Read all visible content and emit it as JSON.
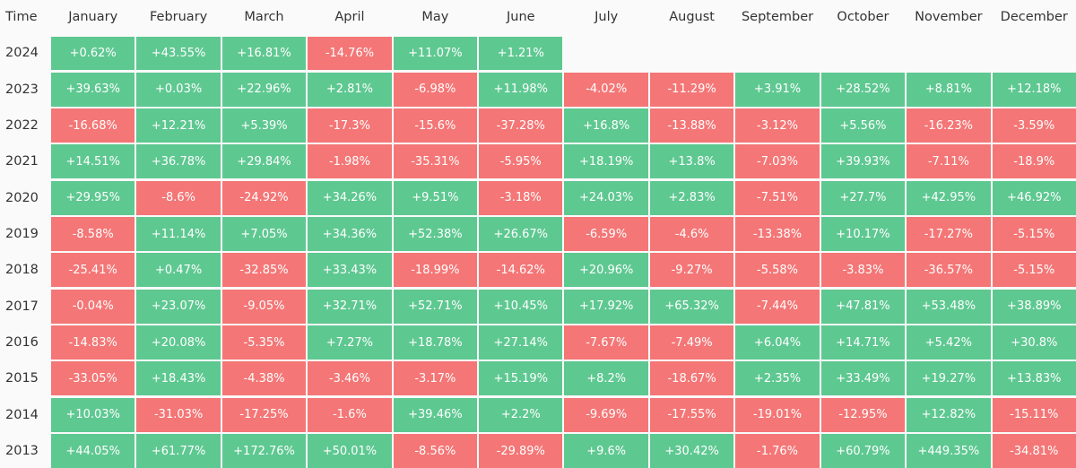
{
  "chart_data": {
    "type": "heatmap",
    "corner_label": "Time",
    "columns": [
      "January",
      "February",
      "March",
      "April",
      "May",
      "June",
      "July",
      "August",
      "September",
      "October",
      "November",
      "December"
    ],
    "colors": {
      "positive": "#5ec891",
      "negative": "#f47676"
    },
    "rows": [
      {
        "year": "2024",
        "values": [
          "+0.62%",
          "+43.55%",
          "+16.81%",
          "-14.76%",
          "+11.07%",
          "+1.21%",
          "",
          "",
          "",
          "",
          "",
          ""
        ]
      },
      {
        "year": "2023",
        "values": [
          "+39.63%",
          "+0.03%",
          "+22.96%",
          "+2.81%",
          "-6.98%",
          "+11.98%",
          "-4.02%",
          "-11.29%",
          "+3.91%",
          "+28.52%",
          "+8.81%",
          "+12.18%"
        ]
      },
      {
        "year": "2022",
        "values": [
          "-16.68%",
          "+12.21%",
          "+5.39%",
          "-17.3%",
          "-15.6%",
          "-37.28%",
          "+16.8%",
          "-13.88%",
          "-3.12%",
          "+5.56%",
          "-16.23%",
          "-3.59%"
        ]
      },
      {
        "year": "2021",
        "values": [
          "+14.51%",
          "+36.78%",
          "+29.84%",
          "-1.98%",
          "-35.31%",
          "-5.95%",
          "+18.19%",
          "+13.8%",
          "-7.03%",
          "+39.93%",
          "-7.11%",
          "-18.9%"
        ]
      },
      {
        "year": "2020",
        "values": [
          "+29.95%",
          "-8.6%",
          "-24.92%",
          "+34.26%",
          "+9.51%",
          "-3.18%",
          "+24.03%",
          "+2.83%",
          "-7.51%",
          "+27.7%",
          "+42.95%",
          "+46.92%"
        ]
      },
      {
        "year": "2019",
        "values": [
          "-8.58%",
          "+11.14%",
          "+7.05%",
          "+34.36%",
          "+52.38%",
          "+26.67%",
          "-6.59%",
          "-4.6%",
          "-13.38%",
          "+10.17%",
          "-17.27%",
          "-5.15%"
        ]
      },
      {
        "year": "2018",
        "values": [
          "-25.41%",
          "+0.47%",
          "-32.85%",
          "+33.43%",
          "-18.99%",
          "-14.62%",
          "+20.96%",
          "-9.27%",
          "-5.58%",
          "-3.83%",
          "-36.57%",
          "-5.15%"
        ]
      },
      {
        "year": "2017",
        "values": [
          "-0.04%",
          "+23.07%",
          "-9.05%",
          "+32.71%",
          "+52.71%",
          "+10.45%",
          "+17.92%",
          "+65.32%",
          "-7.44%",
          "+47.81%",
          "+53.48%",
          "+38.89%"
        ]
      },
      {
        "year": "2016",
        "values": [
          "-14.83%",
          "+20.08%",
          "-5.35%",
          "+7.27%",
          "+18.78%",
          "+27.14%",
          "-7.67%",
          "-7.49%",
          "+6.04%",
          "+14.71%",
          "+5.42%",
          "+30.8%"
        ]
      },
      {
        "year": "2015",
        "values": [
          "-33.05%",
          "+18.43%",
          "-4.38%",
          "-3.46%",
          "-3.17%",
          "+15.19%",
          "+8.2%",
          "-18.67%",
          "+2.35%",
          "+33.49%",
          "+19.27%",
          "+13.83%"
        ]
      },
      {
        "year": "2014",
        "values": [
          "+10.03%",
          "-31.03%",
          "-17.25%",
          "-1.6%",
          "+39.46%",
          "+2.2%",
          "-9.69%",
          "-17.55%",
          "-19.01%",
          "-12.95%",
          "+12.82%",
          "-15.11%"
        ]
      },
      {
        "year": "2013",
        "values": [
          "+44.05%",
          "+61.77%",
          "+172.76%",
          "+50.01%",
          "-8.56%",
          "-29.89%",
          "+9.6%",
          "+30.42%",
          "-1.76%",
          "+60.79%",
          "+449.35%",
          "-34.81%"
        ]
      }
    ]
  }
}
